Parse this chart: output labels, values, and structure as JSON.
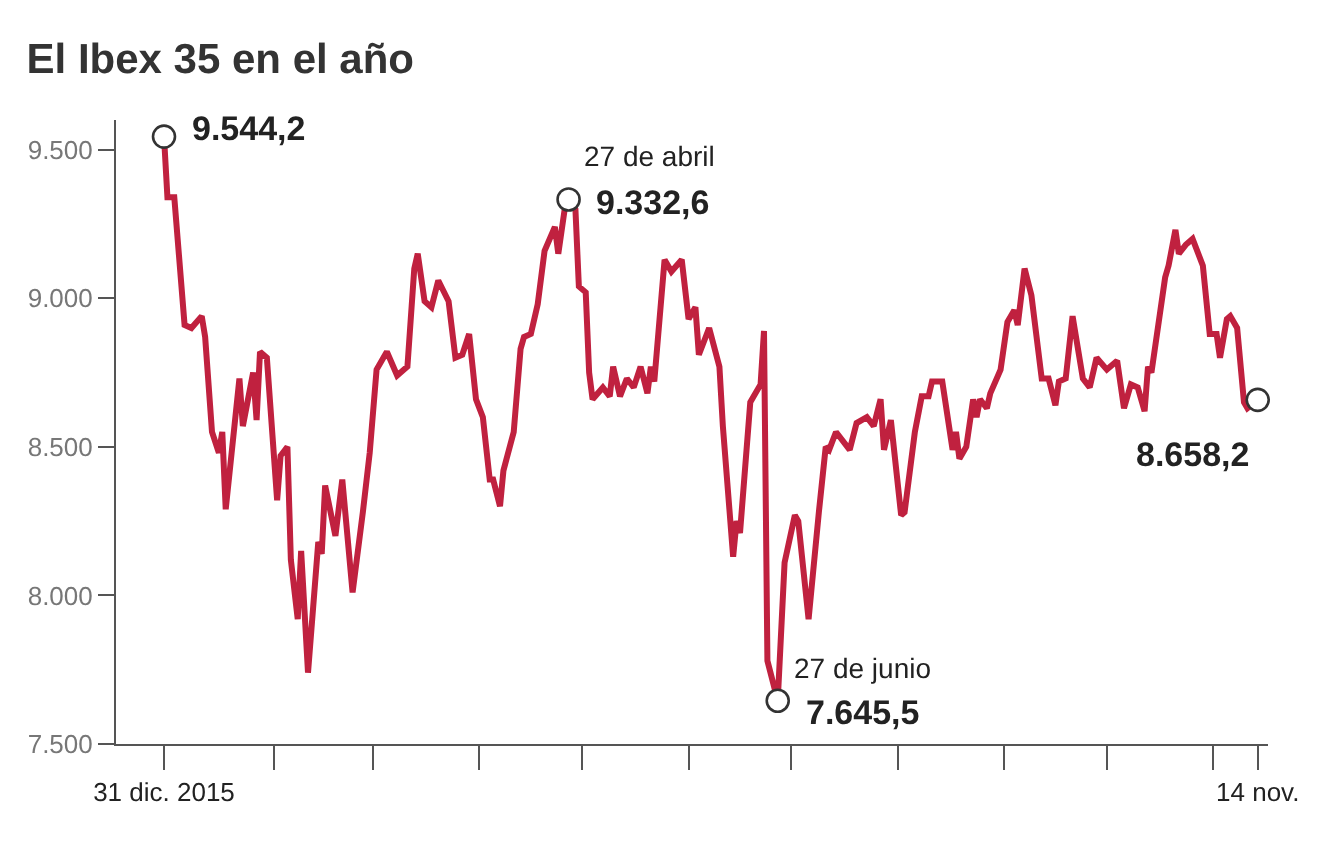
{
  "chart_data": {
    "type": "line",
    "title": "El Ibex 35 en el año",
    "series": [
      {
        "color": "#c0213f",
        "line_style": "solid",
        "marker": "none",
        "x": [
          "2015-12-31",
          "2016-01-01",
          "2016-01-03",
          "2016-01-06",
          "2016-01-08",
          "2016-01-11",
          "2016-01-12",
          "2016-01-14",
          "2016-01-16",
          "2016-01-17",
          "2016-01-18",
          "2016-01-22",
          "2016-01-23",
          "2016-01-26",
          "2016-01-27",
          "2016-01-28",
          "2016-01-30",
          "2016-02-02",
          "2016-02-03",
          "2016-02-05",
          "2016-02-06",
          "2016-02-08",
          "2016-02-09",
          "2016-02-11",
          "2016-02-14",
          "2016-02-15",
          "2016-02-16",
          "2016-02-19",
          "2016-02-21",
          "2016-02-24",
          "2016-02-27",
          "2016-02-29",
          "2016-03-02",
          "2016-03-05",
          "2016-03-08",
          "2016-03-11",
          "2016-03-13",
          "2016-03-14",
          "2016-03-16",
          "2016-03-18",
          "2016-03-20",
          "2016-03-23",
          "2016-03-25",
          "2016-03-27",
          "2016-03-29",
          "2016-03-31",
          "2016-04-02",
          "2016-04-04",
          "2016-04-05",
          "2016-04-07",
          "2016-04-08",
          "2016-04-11",
          "2016-04-13",
          "2016-04-14",
          "2016-04-16",
          "2016-04-18",
          "2016-04-20",
          "2016-04-23",
          "2016-04-24",
          "2016-04-26",
          "2016-04-27",
          "2016-04-29",
          "2016-04-30",
          "2016-05-02",
          "2016-05-03",
          "2016-05-04",
          "2016-05-07",
          "2016-05-09",
          "2016-05-10",
          "2016-05-12",
          "2016-05-14",
          "2016-05-16",
          "2016-05-18",
          "2016-05-20",
          "2016-05-21",
          "2016-05-22",
          "2016-05-25",
          "2016-05-27",
          "2016-05-30",
          "2016-06-01",
          "2016-06-03",
          "2016-06-04",
          "2016-06-07",
          "2016-06-10",
          "2016-06-11",
          "2016-06-14",
          "2016-06-15",
          "2016-06-16",
          "2016-06-19",
          "2016-06-22",
          "2016-06-23",
          "2016-06-24",
          "2016-06-27",
          "2016-06-29",
          "2016-07-02",
          "2016-07-03",
          "2016-07-06",
          "2016-07-09",
          "2016-07-11",
          "2016-07-12",
          "2016-07-14",
          "2016-07-18",
          "2016-07-20",
          "2016-07-23",
          "2016-07-25",
          "2016-07-27",
          "2016-07-28",
          "2016-07-30",
          "2016-08-02",
          "2016-08-03",
          "2016-08-06",
          "2016-08-08",
          "2016-08-10",
          "2016-08-11",
          "2016-08-14",
          "2016-08-17",
          "2016-08-18",
          "2016-08-19",
          "2016-08-21",
          "2016-08-23",
          "2016-08-24",
          "2016-08-25",
          "2016-08-27",
          "2016-08-28",
          "2016-08-31",
          "2016-09-02",
          "2016-09-04",
          "2016-09-05",
          "2016-09-07",
          "2016-09-09",
          "2016-09-12",
          "2016-09-14",
          "2016-09-16",
          "2016-09-17",
          "2016-09-19",
          "2016-09-21",
          "2016-09-24",
          "2016-09-26",
          "2016-09-28",
          "2016-10-01",
          "2016-10-04",
          "2016-10-06",
          "2016-10-08",
          "2016-10-10",
          "2016-10-12",
          "2016-10-13",
          "2016-10-14",
          "2016-10-18",
          "2016-10-19",
          "2016-10-21",
          "2016-10-22",
          "2016-10-24",
          "2016-10-26",
          "2016-10-29",
          "2016-10-31",
          "2016-11-02",
          "2016-11-03",
          "2016-11-05",
          "2016-11-06",
          "2016-11-08",
          "2016-11-10",
          "2016-11-11",
          "2016-11-14"
        ],
        "values": [
          9544.2,
          9340,
          9340,
          8910,
          8900,
          8940,
          8870,
          8550,
          8480,
          8550,
          8290,
          8730,
          8570,
          8750,
          8590,
          8820,
          8800,
          8320,
          8470,
          8500,
          8120,
          7920,
          8150,
          7740,
          8180,
          8140,
          8370,
          8200,
          8390,
          8010,
          8280,
          8480,
          8760,
          8820,
          8740,
          8770,
          9100,
          9150,
          8990,
          8970,
          9060,
          8990,
          8800,
          8810,
          8880,
          8660,
          8600,
          8390,
          8390,
          8300,
          8420,
          8550,
          8830,
          8870,
          8880,
          8980,
          9160,
          9240,
          9150,
          9310,
          9332.6,
          9300,
          9040,
          9020,
          8750,
          8660,
          8700,
          8670,
          8770,
          8670,
          8730,
          8700,
          8770,
          8680,
          8770,
          8720,
          9130,
          9090,
          9130,
          8930,
          8970,
          8810,
          8900,
          8770,
          8570,
          8130,
          8250,
          8210,
          8650,
          8710,
          8890,
          7780,
          7645.5,
          8110,
          8270,
          8250,
          7920,
          8280,
          8500,
          8490,
          8550,
          8490,
          8580,
          8600,
          8570,
          8660,
          8490,
          8590,
          8270,
          8280,
          8550,
          8670,
          8670,
          8720,
          8720,
          8490,
          8550,
          8460,
          8500,
          8660,
          8600,
          8660,
          8630,
          8680,
          8760,
          8920,
          8960,
          8910,
          9100,
          9010,
          8730,
          8730,
          8640,
          8720,
          8730,
          8940,
          8730,
          8700,
          8800,
          8760,
          8790,
          8630,
          8710,
          8700,
          8620,
          8770,
          8750,
          9070,
          9110,
          9230,
          9150,
          9180,
          9200,
          9110,
          8880,
          8880,
          8800,
          8930,
          8940,
          8900,
          8650,
          8630,
          8658.2
        ]
      },
      {
        "type": "scatter",
        "color": "#ffffff",
        "marker": "circle",
        "x": [
          "2015-12-31",
          "2016-04-27",
          "2016-06-27",
          "2016-11-14"
        ],
        "values": [
          9544.2,
          9332.6,
          7645.5,
          8658.2
        ]
      }
    ],
    "xlim": [
      "2015-12-17",
      "2016-11-17"
    ],
    "xticks": [
      {
        "value": "2015-12-31",
        "label": "31 dic. 2015"
      },
      {
        "value": "2016-02-01",
        "label": null
      },
      {
        "value": "2016-03-01",
        "label": null
      },
      {
        "value": "2016-04-01",
        "label": null
      },
      {
        "value": "2016-05-01",
        "label": null
      },
      {
        "value": "2016-06-01",
        "label": null
      },
      {
        "value": "2016-07-01",
        "label": null
      },
      {
        "value": "2016-08-01",
        "label": null
      },
      {
        "value": "2016-09-01",
        "label": null
      },
      {
        "value": "2016-10-01",
        "label": null
      },
      {
        "value": "2016-11-01",
        "label": null
      },
      {
        "value": "2016-11-14",
        "label": "14 nov."
      }
    ],
    "ylim": [
      7500,
      9600
    ],
    "yticks": [
      {
        "value": 7500,
        "label": "7.500"
      },
      {
        "value": 8000,
        "label": "8.000"
      },
      {
        "value": 8500,
        "label": "8.500"
      },
      {
        "value": 9000,
        "label": "9.000"
      },
      {
        "value": 9500,
        "label": "9.500"
      }
    ],
    "grid": false,
    "annotations": [
      {
        "text": "9.544,2",
        "x": "2015-12-31",
        "y": 9544.2
      },
      {
        "text": "27 de abril",
        "x": "2016-04-27",
        "y": 9332.6
      },
      {
        "text": "9.332,6",
        "x": "2016-04-27",
        "y": 9332.6
      },
      {
        "text": "27 de junio",
        "x": "2016-06-27",
        "y": 7645.5
      },
      {
        "text": "7.645,5",
        "x": "2016-06-27",
        "y": 7645.5
      },
      {
        "text": "8.658,2",
        "x": "2016-11-14",
        "y": 8658.2
      }
    ]
  }
}
